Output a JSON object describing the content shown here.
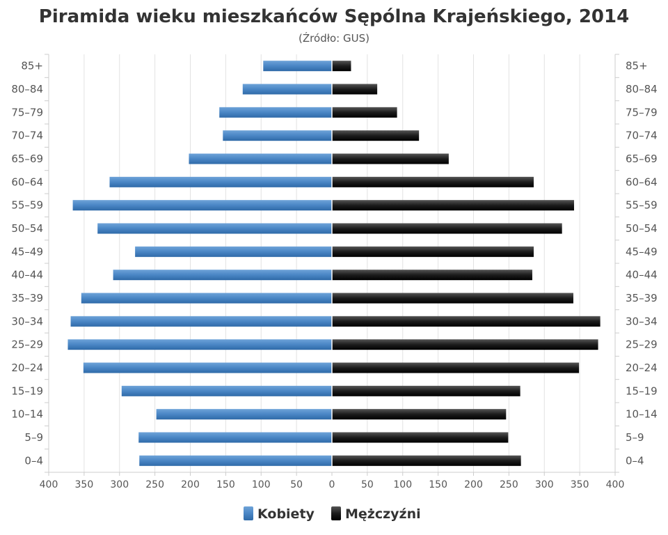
{
  "chart_data": {
    "type": "bar",
    "orientation": "horizontal",
    "subtype": "population-pyramid",
    "title": "Piramida wieku mieszkańców Sępólna Krajeńskiego, 2014",
    "subtitle": "(Źródło: GUS)",
    "categories": [
      "85+",
      "80-84",
      "75-79",
      "70-74",
      "65-69",
      "60-64",
      "55-59",
      "50-54",
      "45-49",
      "40-44",
      "35-39",
      "30-34",
      "25-29",
      "20-24",
      "15-19",
      "10-14",
      "5-9",
      "0-4"
    ],
    "series": [
      {
        "name": "Kobiety",
        "color": "#4a86c5",
        "side": "left",
        "values": [
          97,
          126,
          159,
          154,
          202,
          314,
          366,
          331,
          278,
          309,
          354,
          369,
          373,
          351,
          297,
          248,
          273,
          272
        ]
      },
      {
        "name": "Mężczyźni",
        "color": "#1c1c1c",
        "side": "right",
        "values": [
          27,
          64,
          92,
          123,
          165,
          285,
          342,
          325,
          285,
          283,
          341,
          379,
          376,
          349,
          266,
          246,
          249,
          267
        ]
      }
    ],
    "x_ticks": [
      "400",
      "350",
      "300",
      "250",
      "200",
      "150",
      "100",
      "50",
      "0",
      "50",
      "100",
      "150",
      "200",
      "250",
      "300",
      "350",
      "400"
    ],
    "xlim": [
      -400,
      400
    ],
    "grid": true,
    "legend_position": "bottom-center",
    "category_labels": "both-sides"
  }
}
